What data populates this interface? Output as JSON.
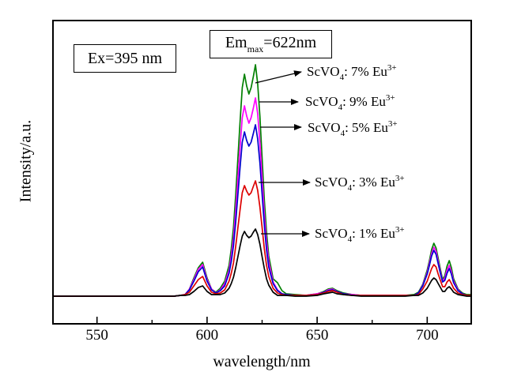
{
  "chart_data": {
    "type": "line",
    "title": "",
    "xlabel": "wavelength/nm",
    "ylabel": "Intensity/a.u.",
    "xlim": [
      530,
      720
    ],
    "ylim": [
      0,
      350
    ],
    "grid": false,
    "legend_position": "annotated-arrows-right-of-main-peak",
    "x_ticks_major": [
      "550",
      "600",
      "650",
      "700"
    ],
    "x_ticks_major_nm": [
      550,
      600,
      650,
      700
    ],
    "x_ticks_minor_nm": [
      575,
      625,
      675
    ],
    "notable_peaks_nm": [
      598,
      617,
      622,
      657,
      703,
      710
    ],
    "annotations": {
      "excitation": "Ex=395 nm",
      "emission": {
        "prefix": "Em",
        "sub": "max",
        "value": "=622nm"
      }
    },
    "x": [
      530,
      540,
      550,
      560,
      570,
      580,
      585,
      588,
      590,
      592,
      594,
      596,
      598,
      600,
      602,
      604,
      606,
      608,
      610,
      611,
      612,
      613,
      614,
      615,
      616,
      617,
      618,
      619,
      620,
      621,
      622,
      623,
      624,
      625,
      626,
      627,
      628,
      630,
      632,
      634,
      636,
      640,
      645,
      650,
      653,
      655,
      657,
      659,
      662,
      666,
      670,
      675,
      680,
      685,
      690,
      694,
      696,
      698,
      700,
      701,
      702,
      703,
      704,
      705,
      706,
      707,
      708,
      709,
      710,
      711,
      712,
      714,
      716,
      718,
      720
    ],
    "series": [
      {
        "name": "ScVO4: 7% Eu3+",
        "label": {
          "base": "ScVO",
          "sub": "4",
          "rest": ": 7% Eu",
          "sup": "3+"
        },
        "color": "#008000",
        "values": [
          2,
          2,
          2,
          2,
          2,
          2,
          2,
          3,
          4,
          11,
          25,
          38,
          45,
          25,
          11,
          7,
          12,
          21,
          41,
          62,
          89,
          130,
          177,
          224,
          266,
          283,
          268,
          258,
          266,
          280,
          295,
          271,
          230,
          177,
          124,
          83,
          53,
          24,
          19,
          9,
          5,
          4,
          3,
          5,
          8,
          11,
          12,
          9,
          6,
          4,
          3,
          3,
          3,
          3,
          3,
          4,
          7,
          17,
          35,
          47,
          61,
          69,
          63,
          50,
          36,
          23,
          28,
          40,
          47,
          38,
          24,
          11,
          6,
          4,
          4
        ]
      },
      {
        "name": "ScVO4: 9% Eu3+",
        "label": {
          "base": "ScVO",
          "sub": "4",
          "rest": ": 9% Eu",
          "sup": "3+"
        },
        "color": "#FF00FF",
        "values": [
          2,
          2,
          2,
          2,
          2,
          2,
          2,
          3,
          4,
          11,
          23,
          36,
          42,
          23,
          11,
          6,
          10,
          18,
          35,
          53,
          76,
          111,
          152,
          192,
          228,
          243,
          230,
          221,
          228,
          240,
          253,
          233,
          197,
          152,
          106,
          71,
          46,
          20,
          10,
          5,
          4,
          3,
          3,
          5,
          7,
          10,
          11,
          8,
          5,
          4,
          3,
          3,
          3,
          3,
          3,
          3,
          6,
          16,
          32,
          44,
          56,
          64,
          59,
          46,
          33,
          21,
          25,
          35,
          41,
          33,
          21,
          10,
          5,
          3,
          3
        ]
      },
      {
        "name": "ScVO4: 5% Eu3+",
        "label": {
          "base": "ScVO",
          "sub": "4",
          "rest": ": 5% Eu",
          "sup": "3+"
        },
        "color": "#0000CD",
        "values": [
          2,
          2,
          2,
          2,
          2,
          2,
          2,
          3,
          4,
          10,
          21,
          33,
          39,
          21,
          10,
          6,
          9,
          15,
          31,
          46,
          66,
          96,
          131,
          166,
          197,
          210,
          199,
          192,
          197,
          208,
          219,
          201,
          171,
          131,
          92,
          61,
          39,
          18,
          9,
          5,
          4,
          3,
          3,
          4,
          7,
          9,
          10,
          8,
          5,
          3,
          3,
          3,
          3,
          3,
          3,
          3,
          6,
          15,
          30,
          41,
          53,
          60,
          55,
          43,
          31,
          20,
          22,
          31,
          37,
          30,
          19,
          9,
          5,
          3,
          3
        ]
      },
      {
        "name": "ScVO4: 3% Eu3+",
        "label": {
          "base": "ScVO",
          "sub": "4",
          "rest": ": 3% Eu",
          "sup": "3+"
        },
        "color": "#DD0000",
        "values": [
          2,
          2,
          2,
          2,
          2,
          2,
          2,
          3,
          4,
          7,
          15,
          23,
          27,
          15,
          7,
          5,
          6,
          10,
          21,
          31,
          44,
          65,
          89,
          112,
          133,
          142,
          135,
          130,
          133,
          141,
          148,
          136,
          115,
          89,
          62,
          41,
          27,
          12,
          6,
          4,
          3,
          3,
          3,
          4,
          6,
          8,
          9,
          7,
          4,
          3,
          3,
          3,
          3,
          3,
          3,
          3,
          4,
          11,
          21,
          29,
          37,
          42,
          39,
          30,
          22,
          14,
          14,
          20,
          23,
          18,
          12,
          6,
          4,
          3,
          3
        ]
      },
      {
        "name": "ScVO4: 1% Eu3+",
        "label": {
          "base": "ScVO",
          "sub": "4",
          "rest": ": 1% Eu",
          "sup": "3+"
        },
        "color": "#000000",
        "values": [
          2,
          2,
          2,
          2,
          2,
          2,
          2,
          3,
          3,
          4,
          8,
          13,
          15,
          8,
          4,
          4,
          4,
          6,
          12,
          18,
          26,
          38,
          52,
          66,
          78,
          84,
          79,
          76,
          78,
          83,
          87,
          80,
          68,
          52,
          37,
          24,
          16,
          7,
          3,
          3,
          3,
          2,
          2,
          3,
          5,
          6,
          7,
          5,
          4,
          3,
          2,
          2,
          2,
          2,
          2,
          3,
          3,
          6,
          12,
          17,
          22,
          25,
          23,
          18,
          13,
          8,
          8,
          12,
          14,
          11,
          7,
          4,
          3,
          2,
          2
        ]
      }
    ]
  }
}
